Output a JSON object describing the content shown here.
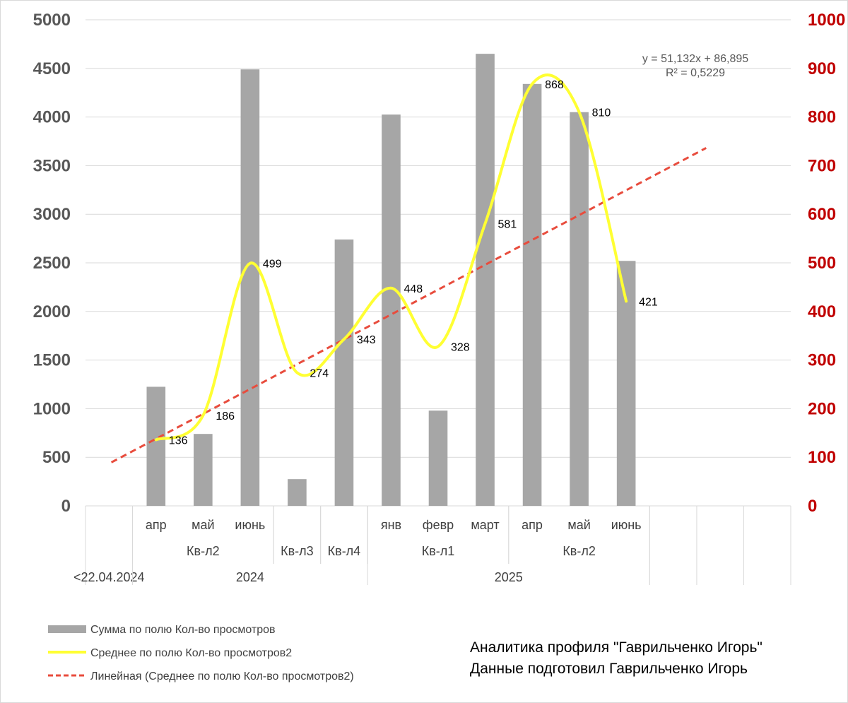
{
  "chart_data": {
    "type": "bar",
    "categories": [
      "<22.04.2024",
      "апр",
      "май",
      "июнь",
      "Кв-л3",
      "Кв-л4",
      "янв",
      "февр",
      "март",
      "апр",
      "май",
      "июнь"
    ],
    "category_groups": {
      "quarters": [
        {
          "label": "Кв-л2",
          "span": [
            1,
            3
          ]
        },
        {
          "label": "Кв-л3",
          "span": [
            4,
            4
          ]
        },
        {
          "label": "Кв-л4",
          "span": [
            5,
            5
          ]
        },
        {
          "label": "Кв-л1",
          "span": [
            6,
            8
          ]
        },
        {
          "label": "Кв-л2",
          "span": [
            9,
            11
          ]
        }
      ],
      "years": [
        {
          "label": "<22.04.2024",
          "span": [
            0,
            0
          ]
        },
        {
          "label": "2024",
          "span": [
            1,
            5
          ]
        },
        {
          "label": "2025",
          "span": [
            6,
            11
          ]
        }
      ]
    },
    "series": [
      {
        "name": "Сумма по полю Кол-во просмотров",
        "type": "bar",
        "axis": "left",
        "color": "#a6a6a6",
        "values": [
          null,
          1225,
          740,
          4490,
          275,
          2740,
          4025,
          980,
          4650,
          4340,
          4050,
          2520
        ]
      },
      {
        "name": "Среднее по полю Кол-во просмотров2",
        "type": "line",
        "axis": "right",
        "color": "#ffff33",
        "values": [
          null,
          136,
          186,
          499,
          274,
          343,
          448,
          328,
          581,
          868,
          810,
          421
        ],
        "data_labels": [
          null,
          "136",
          "186",
          "499",
          "274",
          "343",
          "448",
          "328",
          "581",
          "868",
          "810",
          "421"
        ]
      },
      {
        "name": "Линейная (Среднее по полю Кол-во просмотров2)",
        "type": "trendline",
        "axis": "right",
        "color": "#e84c3d",
        "equation": "y = 51,132x + 86,895",
        "r_squared": "R² = 0,5229",
        "slope": 51.132,
        "intercept": 86.895
      }
    ],
    "y_left": {
      "min": 0,
      "max": 5000,
      "ticks": [
        0,
        500,
        1000,
        1500,
        2000,
        2500,
        3000,
        3500,
        4000,
        4500,
        5000
      ]
    },
    "y_right": {
      "min": 0,
      "max": 1000,
      "ticks": [
        0,
        100,
        200,
        300,
        400,
        500,
        600,
        700,
        800,
        900,
        1000
      ],
      "color": "#c00000"
    },
    "grid": true,
    "legend_position": "bottom-left"
  },
  "credits": {
    "line1": "Аналитика профиля \"Гаврильченко Игорь\"",
    "line2": "Данные подготовил Гаврильченко Игорь"
  }
}
